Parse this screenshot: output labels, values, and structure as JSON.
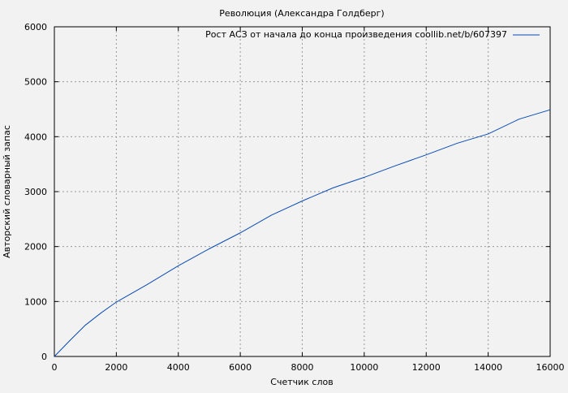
{
  "chart_data": {
    "type": "line",
    "title": "Революция (Александра Голдберг)",
    "xlabel": "Счетчик слов",
    "ylabel": "Авторский словарный запас",
    "xlim": [
      0,
      16000
    ],
    "ylim": [
      0,
      6000
    ],
    "xticks": [
      0,
      2000,
      4000,
      6000,
      8000,
      10000,
      12000,
      14000,
      16000
    ],
    "yticks": [
      0,
      1000,
      2000,
      3000,
      4000,
      5000,
      6000
    ],
    "grid": true,
    "legend_position": "top-right",
    "series": [
      {
        "name": "Рост АСЗ от начала до конца произведения coollib.net/b/607397",
        "color": "#0a4bb4",
        "x": [
          0,
          500,
          1000,
          1500,
          2000,
          3000,
          4000,
          5000,
          6000,
          7000,
          8000,
          9000,
          10000,
          11000,
          12000,
          13000,
          14000,
          15000,
          16000
        ],
        "y": [
          0,
          290,
          570,
          790,
          990,
          1310,
          1650,
          1960,
          2250,
          2570,
          2830,
          3070,
          3260,
          3470,
          3670,
          3880,
          4050,
          4320,
          4490
        ]
      }
    ]
  }
}
